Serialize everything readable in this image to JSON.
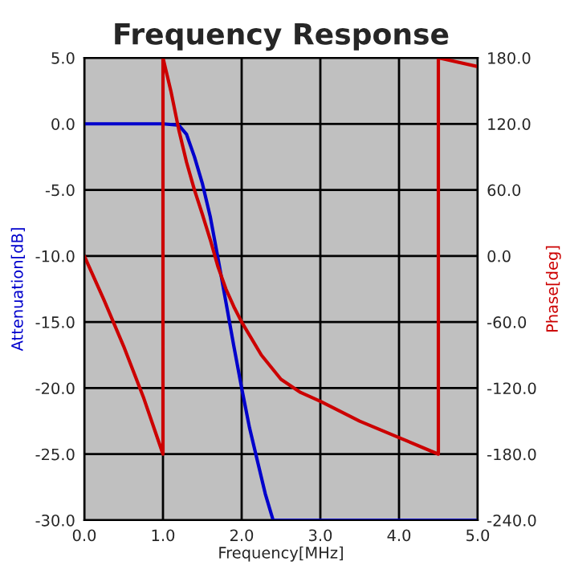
{
  "chart_data": {
    "type": "line",
    "title": "Frequency Response",
    "xlabel": "Frequency[MHz]",
    "ylabel": "Attenuation[dB]",
    "y2label": "Phase[deg]",
    "xlim": [
      0,
      5
    ],
    "xticks": [
      {
        "value": 0,
        "label": "0.0"
      },
      {
        "value": 1,
        "label": "1.0"
      },
      {
        "value": 2,
        "label": "2.0"
      },
      {
        "value": 3,
        "label": "3.0"
      },
      {
        "value": 4,
        "label": "4.0"
      },
      {
        "value": 5,
        "label": "5.0"
      }
    ],
    "ylim": [
      -30,
      5
    ],
    "yticks": [
      {
        "value": 5,
        "label": "5.0"
      },
      {
        "value": 0,
        "label": "0.0"
      },
      {
        "value": -5,
        "label": "-5.0"
      },
      {
        "value": -10,
        "label": "-10.0"
      },
      {
        "value": -15,
        "label": "-15.0"
      },
      {
        "value": -20,
        "label": "-20.0"
      },
      {
        "value": -25,
        "label": "-25.0"
      },
      {
        "value": -30,
        "label": "-30.0"
      }
    ],
    "y2lim": [
      -240,
      180
    ],
    "y2ticks": [
      {
        "value": 180,
        "label": "180.0"
      },
      {
        "value": 120,
        "label": "120.0"
      },
      {
        "value": 60,
        "label": "60.0"
      },
      {
        "value": 0,
        "label": "0.0"
      },
      {
        "value": -60,
        "label": "-60.0"
      },
      {
        "value": -120,
        "label": "-120.0"
      },
      {
        "value": -180,
        "label": "-180.0"
      },
      {
        "value": -240,
        "label": "-240.0"
      }
    ],
    "grid": true,
    "series": [
      {
        "color": "#0000cc",
        "x": [
          0,
          1.0,
          1.2,
          1.3,
          1.4,
          1.5,
          1.6,
          1.7,
          1.8,
          1.9,
          2.0,
          2.1,
          2.2,
          2.3,
          2.4,
          5.0
        ],
        "values": [
          0,
          0,
          -0.1,
          -0.8,
          -2.5,
          -4.5,
          -7,
          -10.2,
          -13.5,
          -16.8,
          -20,
          -23,
          -25.5,
          -28,
          -30,
          -30
        ]
      },
      {
        "color": "#cc0000",
        "axis": "y2",
        "x": [
          0,
          0.25,
          0.5,
          0.75,
          1.0,
          1.0,
          1.1,
          1.2,
          1.3,
          1.4,
          1.5,
          1.6,
          1.7,
          1.8,
          1.9,
          2.0,
          2.25,
          2.5,
          2.75,
          3.0,
          3.5,
          4.0,
          4.5,
          4.5,
          5.0
        ],
        "values": [
          0,
          -40,
          -82,
          -128,
          -180,
          180,
          150,
          115,
          85,
          60,
          38,
          15,
          -10,
          -30,
          -46,
          -60,
          -90,
          -112,
          -124,
          -132,
          -150,
          -165,
          -180,
          180,
          172
        ]
      }
    ]
  }
}
